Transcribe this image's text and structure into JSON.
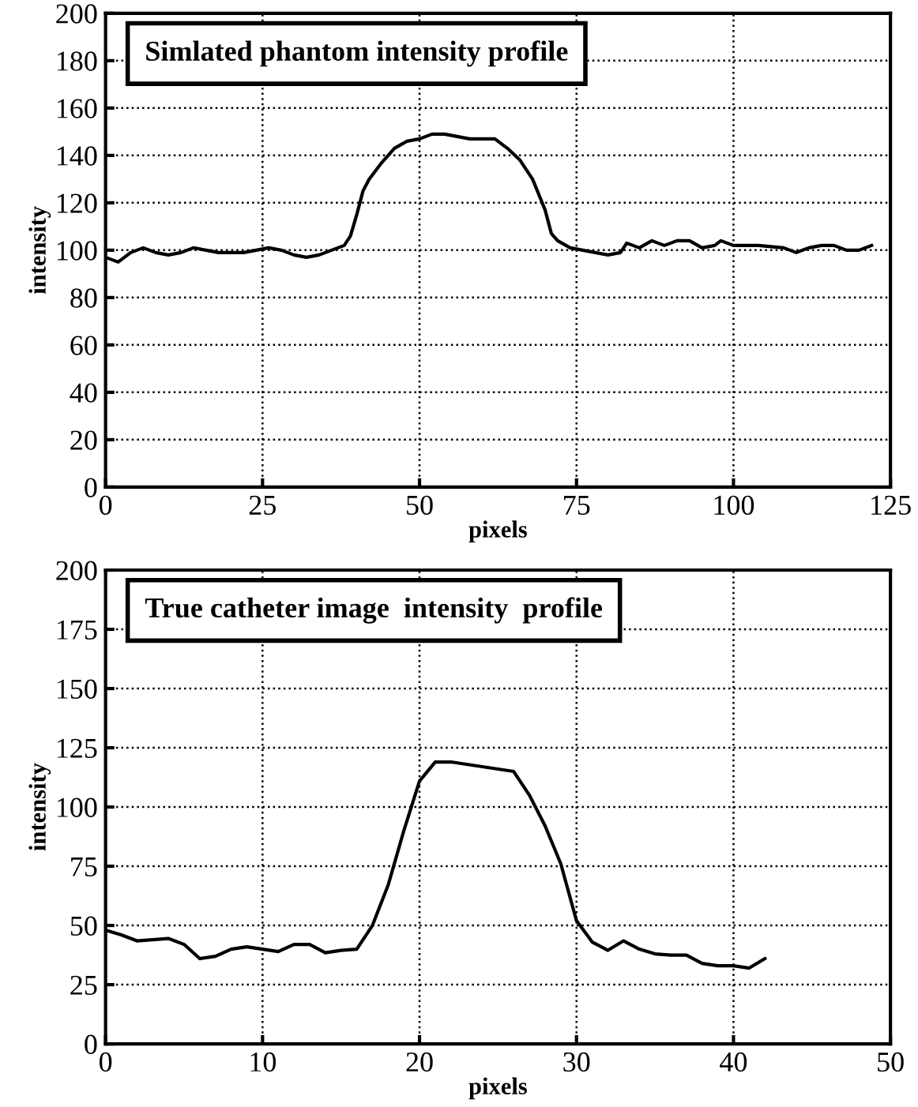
{
  "chart_data": [
    {
      "type": "line",
      "title": "Simlated phantom intensity profile",
      "xlabel": "pixels",
      "ylabel": "intensity",
      "xlim": [
        0,
        125
      ],
      "xticks": [
        0,
        25,
        50,
        75,
        100,
        125
      ],
      "ylim": [
        0,
        200
      ],
      "yticks": [
        0,
        20,
        40,
        60,
        80,
        100,
        120,
        140,
        160,
        180,
        200
      ],
      "grid": true,
      "legend": false,
      "marker": "none",
      "line_style": "solid",
      "x": [
        0,
        2,
        4,
        6,
        8,
        10,
        12,
        14,
        16,
        18,
        20,
        22,
        24,
        26,
        28,
        30,
        32,
        34,
        36,
        38,
        39,
        40,
        41,
        42,
        44,
        46,
        48,
        50,
        52,
        54,
        56,
        58,
        60,
        62,
        64,
        66,
        68,
        70,
        71,
        72,
        74,
        76,
        78,
        80,
        82,
        83,
        85,
        87,
        89,
        91,
        93,
        95,
        97,
        98,
        100,
        104,
        108,
        110,
        112,
        114,
        116,
        118,
        120,
        122
      ],
      "series": [
        {
          "color": "#000000",
          "values": [
            97,
            95,
            99,
            101,
            99,
            98,
            99,
            101,
            100,
            99,
            99,
            99,
            100,
            101,
            100,
            98,
            97,
            98,
            100,
            102,
            106,
            115,
            125,
            130,
            137,
            143,
            146,
            147,
            149,
            149,
            148,
            147,
            147,
            147,
            143,
            138,
            130,
            117,
            107,
            104,
            101,
            100,
            99,
            98,
            99,
            103,
            101,
            104,
            102,
            104,
            104,
            101,
            102,
            104,
            102,
            102,
            101,
            99,
            101,
            102,
            102,
            100,
            100,
            102
          ]
        }
      ]
    },
    {
      "type": "line",
      "title": "True catheter image  intensity  profile",
      "xlabel": "pixels",
      "ylabel": "intensity",
      "xlim": [
        0,
        50
      ],
      "xticks": [
        0,
        10,
        20,
        30,
        40,
        50
      ],
      "ylim": [
        0,
        200
      ],
      "yticks": [
        0,
        25,
        50,
        75,
        100,
        125,
        150,
        175,
        200
      ],
      "grid": true,
      "legend": false,
      "marker": "none",
      "line_style": "solid",
      "x": [
        0,
        1,
        2,
        3,
        4,
        5,
        6,
        7,
        8,
        9,
        10,
        11,
        12,
        13,
        14,
        15,
        16,
        17,
        18,
        19,
        20,
        21,
        22,
        26,
        27,
        28,
        29,
        30,
        31,
        32,
        33,
        34,
        35,
        36,
        37,
        38,
        39,
        40,
        41,
        42
      ],
      "series": [
        {
          "color": "#000000",
          "values": [
            48,
            46,
            43.5,
            44,
            44.5,
            42,
            36,
            37,
            40,
            41,
            40,
            39,
            42,
            42,
            38.5,
            39.5,
            40,
            50,
            67,
            90,
            111,
            119,
            119,
            115,
            105,
            92,
            76,
            52,
            43,
            39.5,
            43.5,
            40,
            38,
            37.5,
            37.5,
            34,
            33,
            33,
            32,
            36
          ]
        }
      ]
    }
  ]
}
